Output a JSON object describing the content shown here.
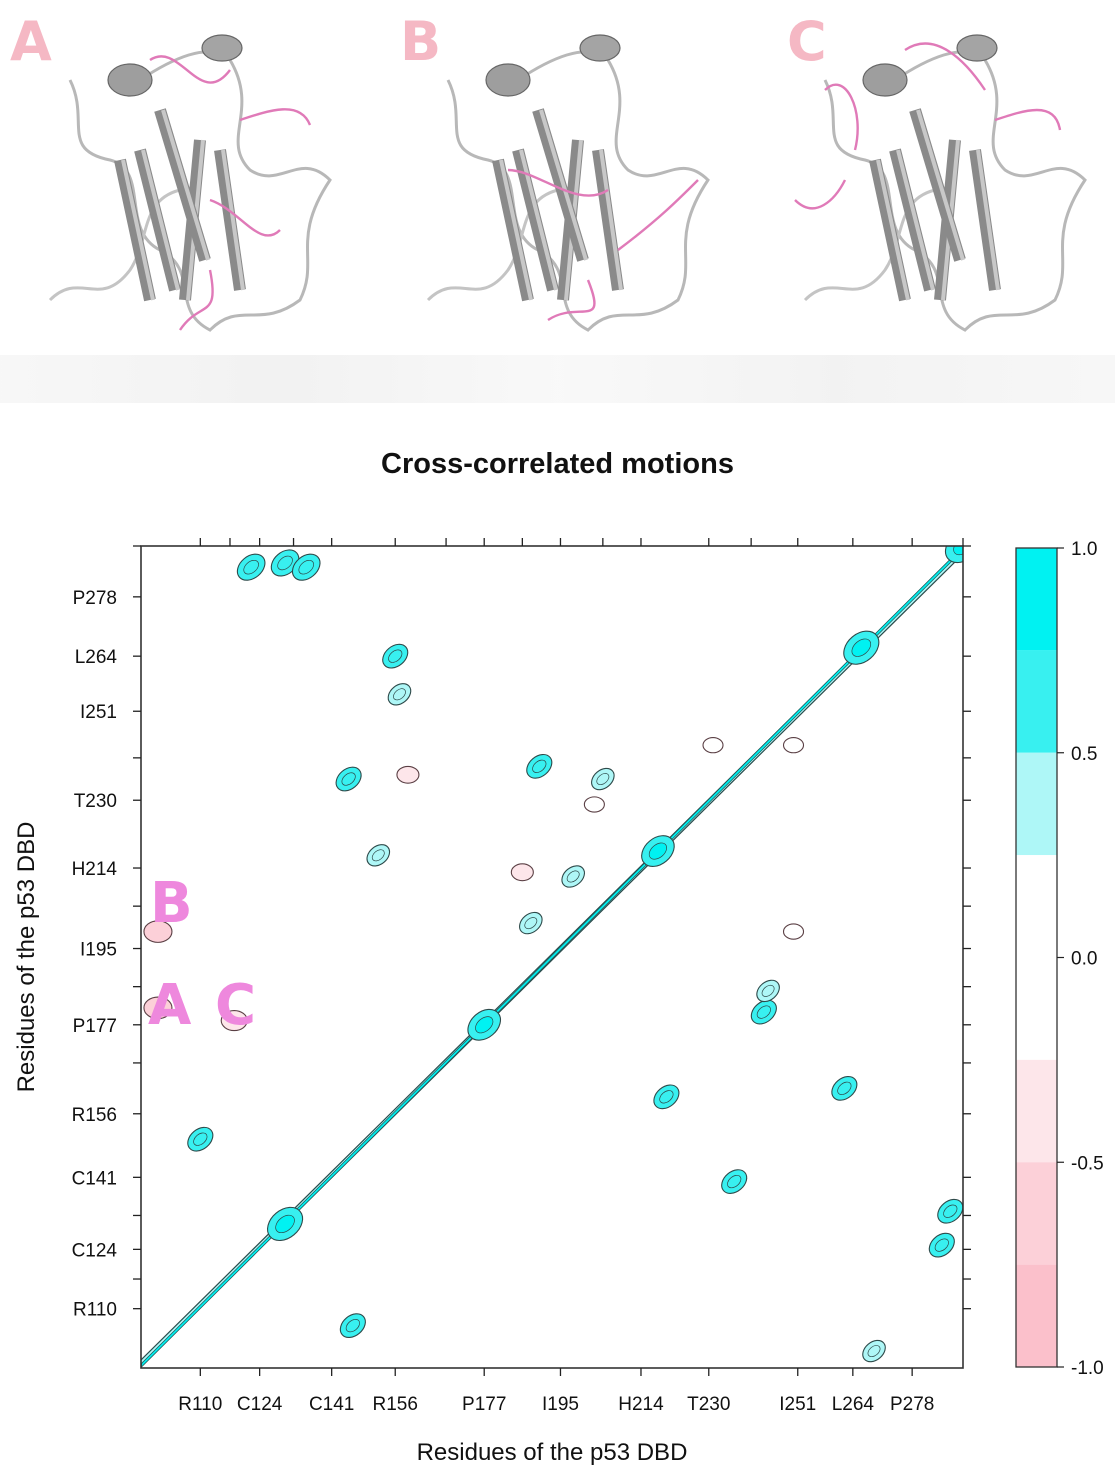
{
  "panels": [
    {
      "letter": "A"
    },
    {
      "letter": "B"
    },
    {
      "letter": "C"
    }
  ],
  "chart_data": {
    "type": "heatmap",
    "title": "Cross-correlated motions",
    "xlabel": "Residues of the p53 DBD",
    "ylabel": "Residues of the p53 DBD",
    "x_tick_labels": [
      "R110",
      "C124",
      "C141",
      "R156",
      "P177",
      "I195",
      "H214",
      "T230",
      "I251",
      "L264",
      "P278"
    ],
    "y_tick_labels": [
      "R110",
      "C124",
      "C141",
      "R156",
      "P177",
      "I195",
      "H214",
      "T230",
      "I251",
      "L264",
      "P278"
    ],
    "tick_values": [
      110,
      124,
      141,
      156,
      177,
      195,
      214,
      230,
      251,
      264,
      278
    ],
    "axis_range": [
      96,
      290
    ],
    "colorbar": {
      "tick_labels": [
        "1.0",
        "0.5",
        "0.0",
        "-0.5",
        "-1.0"
      ],
      "levels": [
        {
          "from": 0.75,
          "to": 1.0,
          "color": "#00f2f2"
        },
        {
          "from": 0.5,
          "to": 0.75,
          "color": "#38f0f0"
        },
        {
          "from": 0.25,
          "to": 0.5,
          "color": "#aef7f7"
        },
        {
          "from": -0.25,
          "to": 0.25,
          "color": "#ffffff"
        },
        {
          "from": -0.5,
          "to": -0.25,
          "color": "#fde6ea"
        },
        {
          "from": -0.75,
          "to": -0.5,
          "color": "#fcd0d8"
        },
        {
          "from": -1.0,
          "to": -0.75,
          "color": "#fbc0cb"
        }
      ]
    },
    "region_labels": [
      "B",
      "A",
      "C"
    ],
    "positive_regions": [
      {
        "x": [
          96,
          290
        ],
        "y": [
          96,
          290
        ],
        "corr": 1.0,
        "kind": "diagonal"
      },
      {
        "center": [
          130,
          130
        ],
        "corr": 0.9
      },
      {
        "center": [
          266,
          266
        ],
        "corr": 0.9
      },
      {
        "center": [
          218,
          218
        ],
        "corr": 0.8
      },
      {
        "center": [
          177,
          177
        ],
        "corr": 0.8
      },
      {
        "center": [
          290,
          290
        ],
        "corr": 0.9
      },
      {
        "center": [
          122,
          285
        ],
        "corr": 0.6
      },
      {
        "center": [
          130,
          286
        ],
        "corr": 0.6
      },
      {
        "center": [
          135,
          285
        ],
        "corr": 0.6
      },
      {
        "center": [
          285,
          125
        ],
        "corr": 0.5
      },
      {
        "center": [
          287,
          133
        ],
        "corr": 0.5
      },
      {
        "center": [
          110,
          150
        ],
        "corr": 0.5
      },
      {
        "center": [
          146,
          106
        ],
        "corr": 0.5
      },
      {
        "center": [
          156,
          264
        ],
        "corr": 0.5
      },
      {
        "center": [
          157,
          255
        ],
        "corr": 0.4
      },
      {
        "center": [
          145,
          235
        ],
        "corr": 0.5
      },
      {
        "center": [
          152,
          217
        ],
        "corr": 0.4
      },
      {
        "center": [
          190,
          238
        ],
        "corr": 0.5
      },
      {
        "center": [
          205,
          235
        ],
        "corr": 0.4
      },
      {
        "center": [
          243,
          180
        ],
        "corr": 0.5
      },
      {
        "center": [
          244,
          185
        ],
        "corr": 0.4
      },
      {
        "center": [
          220,
          160
        ],
        "corr": 0.5
      },
      {
        "center": [
          236,
          140
        ],
        "corr": 0.5
      },
      {
        "center": [
          262,
          162
        ],
        "corr": 0.5
      },
      {
        "center": [
          269,
          100
        ],
        "corr": 0.4
      },
      {
        "center": [
          198,
          212
        ],
        "corr": 0.4
      },
      {
        "center": [
          188,
          201
        ],
        "corr": 0.4
      }
    ],
    "negative_regions": [
      {
        "center": [
          100,
          181
        ],
        "corr": -0.6
      },
      {
        "center": [
          100,
          199
        ],
        "corr": -0.6
      },
      {
        "center": [
          118,
          178
        ],
        "corr": -0.5
      },
      {
        "center": [
          186,
          213
        ],
        "corr": -0.3
      },
      {
        "center": [
          159,
          236
        ],
        "corr": -0.3
      },
      {
        "center": [
          231,
          243
        ],
        "corr": -0.2
      },
      {
        "center": [
          250,
          243
        ],
        "corr": -0.2
      },
      {
        "center": [
          250,
          199
        ],
        "corr": -0.2
      },
      {
        "center": [
          203,
          229
        ],
        "corr": -0.2
      }
    ]
  }
}
